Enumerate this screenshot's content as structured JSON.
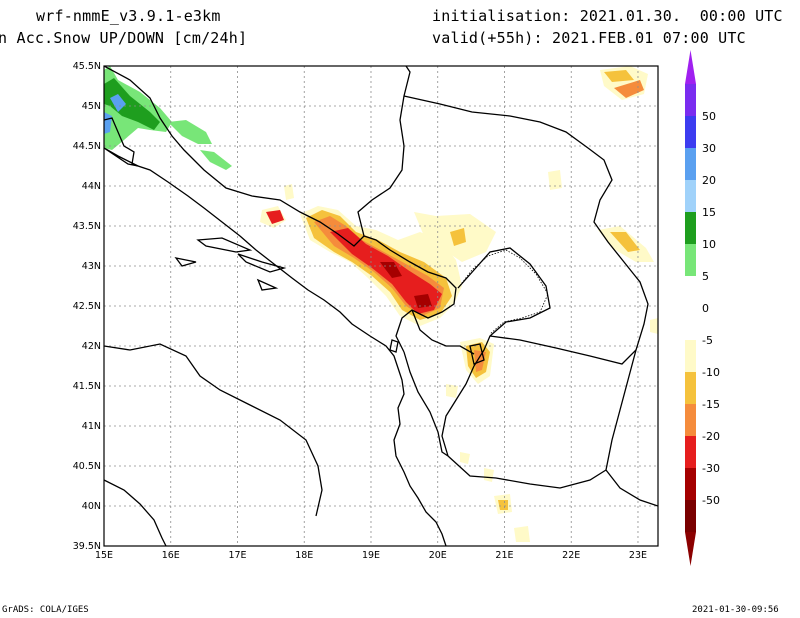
{
  "header": {
    "model": "wrf-nmmE_v3.9.1-e3km",
    "field": "n Acc.Snow UP/DOWN [cm/24h]",
    "init": "initialisation: 2021.01.30.  00:00 UTC",
    "valid": "valid(+55h): 2021.FEB.01 07:00 UTC"
  },
  "footer": {
    "credit": "GrADS: COLA/IGES",
    "timestamp": "2021-01-30-09:56"
  },
  "axes": {
    "lon_ticks": [
      "15E",
      "16E",
      "17E",
      "18E",
      "19E",
      "20E",
      "21E",
      "22E",
      "23E"
    ],
    "lat_ticks": [
      "45.5N",
      "45N",
      "44.5N",
      "44N",
      "43.5N",
      "43N",
      "42.5N",
      "42N",
      "41.5N",
      "41N",
      "40.5N",
      "40N",
      "39.5N"
    ],
    "lon_range": [
      15,
      23.3
    ],
    "lat_range": [
      39.5,
      45.5
    ],
    "grid": true
  },
  "colorbar": {
    "labels": [
      "50",
      "30",
      "20",
      "15",
      "10",
      "5",
      "0",
      "-5",
      "-10",
      "-15",
      "-20",
      "-30",
      "-50"
    ],
    "colors": [
      "#7a2cf0",
      "#3c3cf0",
      "#5aa0f0",
      "#a0d2fa",
      "#1e9e1e",
      "#78e678",
      "#ffffff",
      "#ffffff",
      "#fffac8",
      "#f5c23c",
      "#f58c3c",
      "#e61e1e",
      "#a50000",
      "#7a0000"
    ],
    "top_cap": "#a020f0",
    "bottom_cap": "#8b0000"
  },
  "map_data": {
    "snow_down_areas": [
      {
        "level": "-20",
        "lon": 19.6,
        "lat": 42.6
      },
      {
        "level": "-20",
        "lon": 19.2,
        "lat": 42.95
      },
      {
        "level": "-15",
        "lon": 17.55,
        "lat": 43.6
      },
      {
        "level": "-10",
        "lon": 18.3,
        "lat": 43.55
      },
      {
        "level": "-10",
        "lon": 20.7,
        "lat": 41.8
      },
      {
        "level": "-10",
        "lon": 22.8,
        "lat": 45.25
      },
      {
        "level": "-10",
        "lon": 22.8,
        "lat": 43.3
      },
      {
        "level": "-5",
        "lon": 20.5,
        "lat": 43.4
      }
    ],
    "snow_up_areas": [
      {
        "level": "10",
        "lon": 15.9,
        "lat": 44.9
      },
      {
        "level": "5",
        "lon": 16.5,
        "lat": 44.7
      },
      {
        "level": "15",
        "lon": 15.15,
        "lat": 45.0
      }
    ]
  }
}
